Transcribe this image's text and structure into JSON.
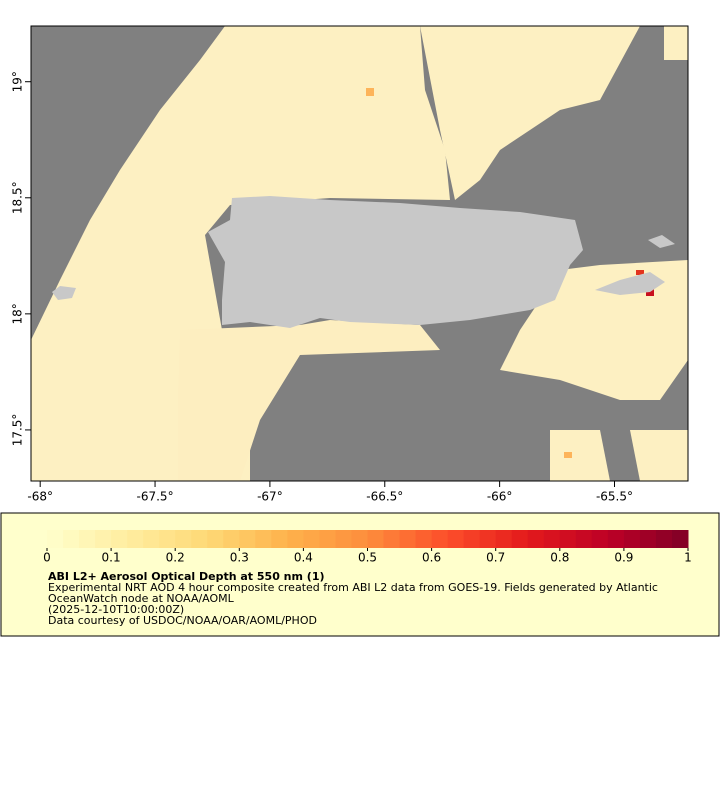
{
  "map": {
    "xlim": [
      -68.04,
      -65.18
    ],
    "ylim": [
      17.28,
      19.24
    ],
    "xticks": [
      {
        "value": -68,
        "label": "-68°"
      },
      {
        "value": -67.5,
        "label": "-67.5°"
      },
      {
        "value": -67,
        "label": "-67°"
      },
      {
        "value": -66.5,
        "label": "-66.5°"
      },
      {
        "value": -66,
        "label": "-66°"
      },
      {
        "value": -65.5,
        "label": "-65.5°"
      }
    ],
    "yticks": [
      {
        "value": 17.5,
        "label": "17.5°"
      },
      {
        "value": 18,
        "label": "18°"
      },
      {
        "value": 18.5,
        "label": "18.5°"
      },
      {
        "value": 19,
        "label": "19°"
      }
    ]
  },
  "colorbar": {
    "lim": [
      0,
      1
    ],
    "ticks": [
      0,
      0.1,
      0.2,
      0.3,
      0.4,
      0.5,
      0.6,
      0.7,
      0.8,
      0.9,
      1
    ],
    "colors": [
      "#ffffcc",
      "#ffeda0",
      "#fed976",
      "#feb24c",
      "#fd8d3c",
      "#fc4e2a",
      "#e31a1c",
      "#bd0026",
      "#800026"
    ]
  },
  "caption": {
    "title": "ABI L2+ Aerosol Optical Depth at 550 nm (1)",
    "lines": [
      "Experimental NRT AOD 4 hour composite created from ABI L2 data from GOES-19. Fields generated by Atlantic",
      "OceanWatch node at NOAA/AOML",
      "(2025-12-10T10:00:00Z)",
      "Data courtesy of USDOC/NOAA/OAR/AOML/PHOD"
    ]
  }
}
